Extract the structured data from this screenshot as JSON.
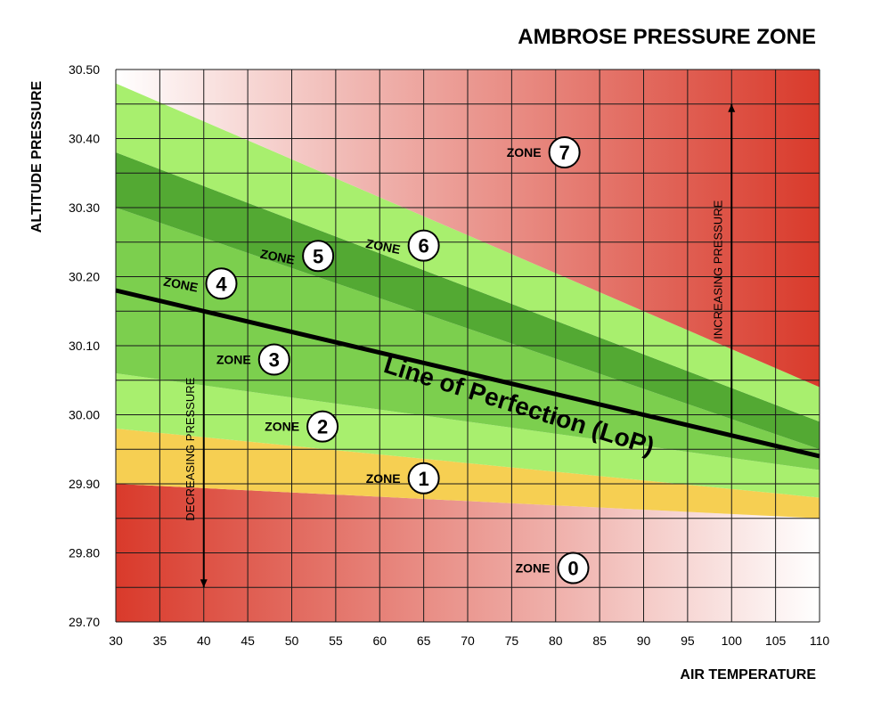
{
  "chart_data": {
    "type": "line",
    "title": "AMBROSE PRESSURE ZONE",
    "xlabel": "AIR TEMPERATURE",
    "ylabel": "ALTITUDE PRESSURE",
    "xlim": [
      30,
      110
    ],
    "ylim": [
      29.7,
      30.5
    ],
    "x_ticks": [
      "30",
      "35",
      "40",
      "45",
      "50",
      "55",
      "60",
      "65",
      "70",
      "75",
      "80",
      "85",
      "90",
      "95",
      "100",
      "105",
      "110"
    ],
    "y_ticks": [
      "30.50",
      "30.40",
      "30.30",
      "30.20",
      "30.10",
      "30.00",
      "29.90",
      "29.80",
      "29.70"
    ],
    "grid": true,
    "line_of_perfection": {
      "label": "Line of Perfection (LoP)",
      "x": [
        30,
        110
      ],
      "y": [
        30.18,
        29.94
      ]
    },
    "boundaries": [
      {
        "x": [
          30,
          110
        ],
        "y": [
          29.9,
          29.85
        ]
      },
      {
        "x": [
          30,
          110
        ],
        "y": [
          29.98,
          29.88
        ]
      },
      {
        "x": [
          30,
          110
        ],
        "y": [
          30.06,
          29.92
        ]
      },
      {
        "x": [
          30,
          110
        ],
        "y": [
          30.3,
          29.95
        ]
      },
      {
        "x": [
          30,
          110
        ],
        "y": [
          30.38,
          29.99
        ]
      },
      {
        "x": [
          30,
          110
        ],
        "y": [
          30.48,
          30.04
        ]
      }
    ],
    "zones": [
      {
        "word": "ZONE",
        "number": "0",
        "x": 82,
        "y": 29.778,
        "color": "#d93a2b"
      },
      {
        "word": "ZONE",
        "number": "1",
        "x": 65,
        "y": 29.908,
        "color": "#f6cf52"
      },
      {
        "word": "ZONE",
        "number": "2",
        "x": 53.5,
        "y": 29.983,
        "color": "#a8ef6e"
      },
      {
        "word": "ZONE",
        "number": "3",
        "x": 48,
        "y": 30.08,
        "color": "#7ccf4e"
      },
      {
        "word": "ZONE",
        "number": "4",
        "x": 42,
        "y": 30.19,
        "color": "#53a933"
      },
      {
        "word": "ZONE",
        "number": "5",
        "x": 53,
        "y": 30.23,
        "color": "#a8ef6e"
      },
      {
        "word": "ZONE",
        "number": "6",
        "x": 65,
        "y": 30.245,
        "color": "#f9ec72"
      },
      {
        "word": "ZONE",
        "number": "7",
        "x": 81,
        "y": 30.38,
        "color": "#d93a2b"
      }
    ],
    "annotations": [
      {
        "text": "DECREASING PRESSURE",
        "x": 40,
        "y_from": 30.15,
        "y_to": 29.75,
        "direction": "down"
      },
      {
        "text": "INCREASING PRESSURE",
        "x": 100,
        "y_from": 29.97,
        "y_to": 30.45,
        "direction": "up"
      }
    ]
  }
}
